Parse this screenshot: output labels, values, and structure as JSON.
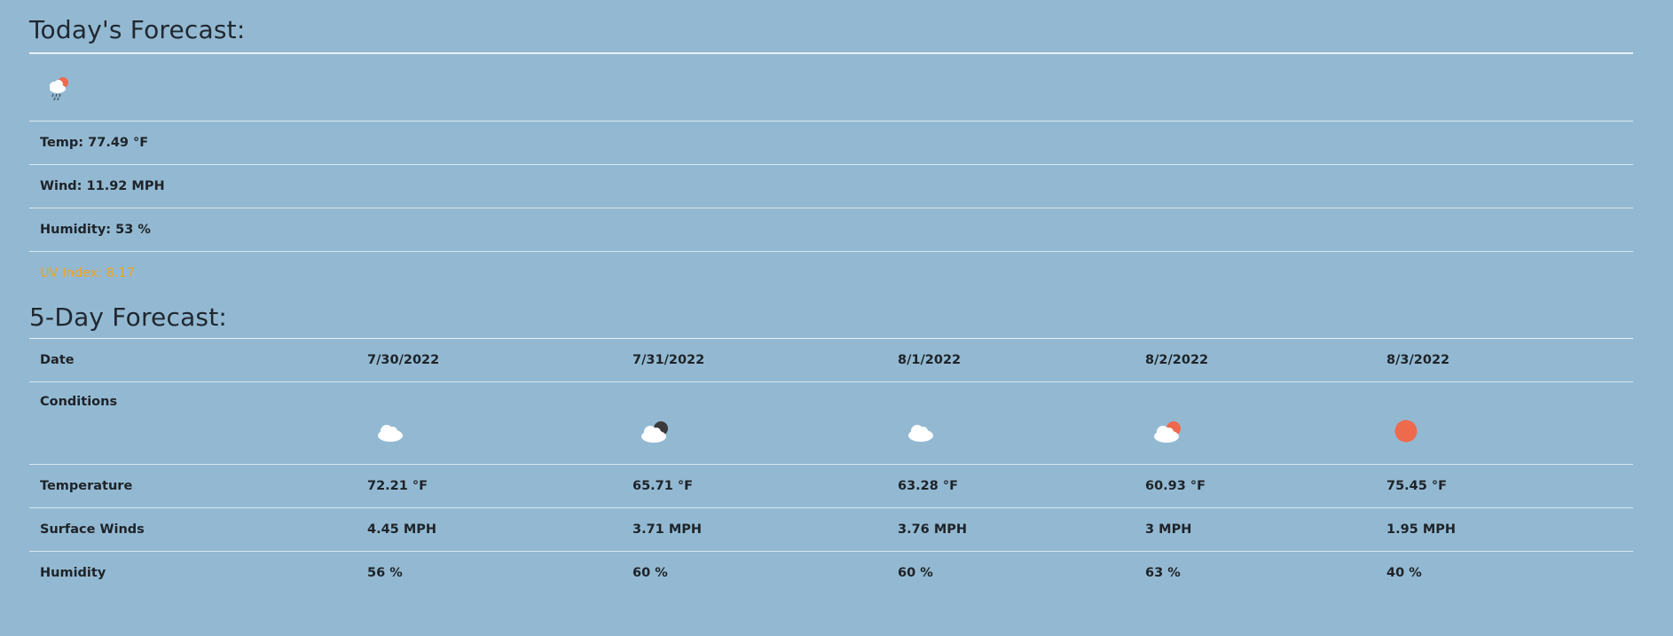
{
  "today": {
    "title": "Today's Forecast:",
    "icon": "rain-cloud-sun-icon",
    "temp": "Temp: 77.49 °F",
    "wind": "Wind: 11.92 MPH",
    "humidity": "Humidity: 53 %",
    "uv": "UV Index: 8.17",
    "uv_color": "#f0a31e"
  },
  "five_day": {
    "title": "5-Day Forecast:",
    "row_labels": {
      "date": "Date",
      "conditions": "Conditions",
      "temperature": "Temperature",
      "winds": "Surface Winds",
      "humidity": "Humidity"
    },
    "days": [
      {
        "date": "7/30/2022",
        "icon": "cloud-icon",
        "temp": "72.21 °F",
        "wind": "4.45 MPH",
        "humidity": "56 %"
      },
      {
        "date": "7/31/2022",
        "icon": "cloud-moon-icon",
        "temp": "65.71 °F",
        "wind": "3.71 MPH",
        "humidity": "60 %"
      },
      {
        "date": "8/1/2022",
        "icon": "cloud-icon",
        "temp": "63.28 °F",
        "wind": "3.76 MPH",
        "humidity": "60 %"
      },
      {
        "date": "8/2/2022",
        "icon": "cloud-sun-icon",
        "temp": "60.93 °F",
        "wind": "3 MPH",
        "humidity": "63 %"
      },
      {
        "date": "8/3/2022",
        "icon": "sun-icon",
        "temp": "75.45 °F",
        "wind": "1.95 MPH",
        "humidity": "40 %"
      }
    ]
  },
  "colors": {
    "background": "#93b9d2",
    "sun": "#ee6a4c",
    "cloud": "#ffffff",
    "moon": "#3a3a3a"
  }
}
